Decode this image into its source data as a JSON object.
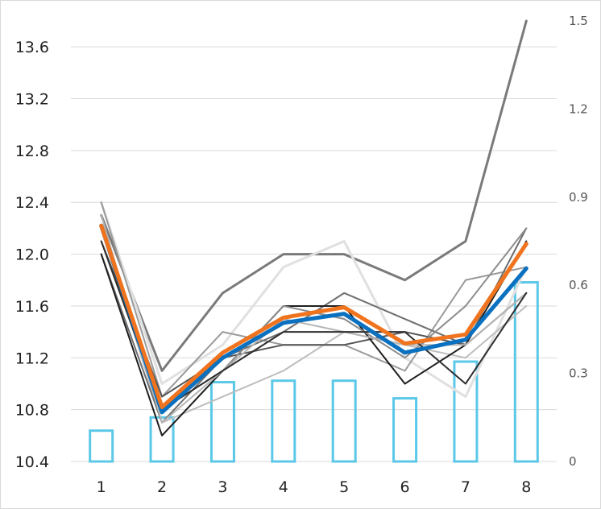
{
  "chart_data": {
    "type": "line",
    "title": "",
    "xlabel": "",
    "ylabel": "",
    "categories": [
      "1",
      "2",
      "3",
      "4",
      "5",
      "6",
      "7",
      "8"
    ],
    "y_left": {
      "lim": [
        10.4,
        13.8
      ],
      "ticks": [
        "10.4",
        "10.8",
        "11.2",
        "11.6",
        "12.0",
        "12.4",
        "12.8",
        "13.2",
        "13.6"
      ]
    },
    "y_right": {
      "lim": [
        0,
        1.5
      ],
      "ticks": [
        "0",
        "0.3",
        "0.6",
        "0.9",
        "1.2",
        "1.5"
      ]
    },
    "grid": "horizontal",
    "bars": {
      "axis": "right",
      "color": "#5bc8e8",
      "values": [
        0.105,
        0.15,
        0.27,
        0.275,
        0.275,
        0.215,
        0.34,
        0.61
      ]
    },
    "series": [
      {
        "color": "#7a7a7a",
        "width": 3,
        "values": [
          12.3,
          11.1,
          11.7,
          12.0,
          12.0,
          11.8,
          12.1,
          13.8
        ]
      },
      {
        "color": "#e0e0e0",
        "width": 3,
        "values": [
          12.4,
          11.0,
          11.3,
          11.9,
          12.1,
          11.2,
          10.9,
          11.9
        ]
      },
      {
        "color": "#9a9a9a",
        "width": 2,
        "values": [
          12.4,
          10.9,
          11.4,
          11.3,
          11.3,
          11.1,
          11.8,
          11.9
        ]
      },
      {
        "color": "#bdbdbd",
        "width": 2,
        "values": [
          12.2,
          10.7,
          10.9,
          11.1,
          11.4,
          11.3,
          11.2,
          11.6
        ]
      },
      {
        "color": "#555555",
        "width": 2,
        "values": [
          12.1,
          10.9,
          11.2,
          11.3,
          11.3,
          11.4,
          11.3,
          11.7
        ]
      },
      {
        "color": "#6e6e6e",
        "width": 2,
        "values": [
          12.0,
          10.7,
          11.2,
          11.4,
          11.7,
          11.5,
          11.3,
          12.2
        ]
      },
      {
        "color": "#1f1f1f",
        "width": 2,
        "values": [
          12.0,
          10.6,
          11.1,
          11.6,
          11.6,
          11.0,
          11.3,
          12.1
        ]
      },
      {
        "color": "#8c8c8c",
        "width": 2,
        "values": [
          12.2,
          10.8,
          11.1,
          11.6,
          11.5,
          11.2,
          11.6,
          12.2
        ]
      },
      {
        "color": "#b5b5b5",
        "width": 2,
        "values": [
          12.3,
          10.7,
          11.1,
          11.5,
          11.4,
          11.3,
          11.3,
          11.7
        ]
      },
      {
        "color": "#2f2f2f",
        "width": 2,
        "values": [
          12.1,
          10.8,
          11.1,
          11.4,
          11.4,
          11.4,
          11.0,
          11.7
        ]
      },
      {
        "color": "#0a70c0",
        "width": 5,
        "values": [
          12.22,
          10.78,
          11.2,
          11.47,
          11.54,
          11.24,
          11.34,
          11.89
        ]
      },
      {
        "color": "#f0731e",
        "width": 5,
        "values": [
          12.22,
          10.82,
          11.24,
          11.51,
          11.59,
          11.31,
          11.38,
          12.08
        ]
      }
    ]
  }
}
